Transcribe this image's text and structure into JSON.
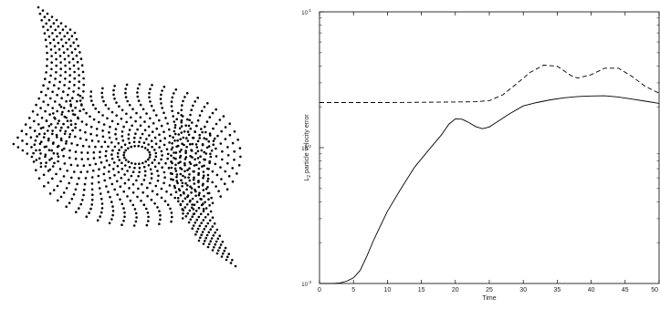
{
  "chart_data": [
    {
      "type": "scatter",
      "title": "",
      "xlabel": "",
      "ylabel": "",
      "description_free": true,
      "series": [
        {
          "color": "#000000"
        }
      ]
    },
    {
      "type": "line",
      "title": "",
      "xlabel": "Time",
      "ylabel": "L2 particle velocity error",
      "ylabel_main": "L",
      "ylabel_sub": "2",
      "ylabel_rest": " particle velocity error",
      "xlim": [
        0,
        50
      ],
      "ylim": [
        0.001,
        0.1
      ],
      "yscale": "log",
      "grid": false,
      "legend": "none",
      "x_ticks": [
        0,
        5,
        10,
        15,
        20,
        25,
        30,
        35,
        40,
        45,
        50
      ],
      "x_tick_labels": [
        "0",
        "5",
        "10",
        "15",
        "20",
        "25",
        "30",
        "35",
        "40",
        "45",
        "50"
      ],
      "y_ticks": [
        0.001,
        0.01,
        0.1
      ],
      "y_tick_labels": [
        {
          "base": "10",
          "exp": "-3"
        },
        {
          "base": "10",
          "exp": "-2"
        },
        {
          "base": "10",
          "exp": "-1"
        }
      ],
      "series": [
        {
          "style": "solid",
          "color": "#000000",
          "x": [
            0,
            1,
            2,
            3,
            4,
            5,
            6,
            7,
            8,
            10,
            12,
            14,
            16,
            18,
            19,
            20,
            21,
            22,
            23,
            24,
            25,
            26,
            28,
            30,
            32,
            34,
            36,
            38,
            40,
            42,
            44,
            46,
            48,
            50
          ],
          "y": [
            0.001,
            0.001,
            0.001,
            0.00101,
            0.00104,
            0.0011,
            0.00125,
            0.0016,
            0.0021,
            0.0034,
            0.005,
            0.0072,
            0.0095,
            0.0125,
            0.0148,
            0.0163,
            0.0162,
            0.0153,
            0.0143,
            0.0138,
            0.0142,
            0.0153,
            0.0178,
            0.0203,
            0.0215,
            0.0225,
            0.0233,
            0.0238,
            0.024,
            0.0241,
            0.0236,
            0.0228,
            0.022,
            0.0212
          ]
        },
        {
          "style": "dashed",
          "color": "#000000",
          "x": [
            0,
            5,
            10,
            15,
            20,
            23,
            25,
            27,
            29,
            31,
            33,
            35,
            37,
            38,
            40,
            42,
            44,
            46,
            48,
            50
          ],
          "y": [
            0.0215,
            0.0215,
            0.0215,
            0.0216,
            0.0217,
            0.0218,
            0.0222,
            0.0245,
            0.0295,
            0.0358,
            0.0405,
            0.0398,
            0.034,
            0.0325,
            0.0345,
            0.0385,
            0.0385,
            0.0335,
            0.0282,
            0.0252
          ]
        }
      ]
    }
  ]
}
